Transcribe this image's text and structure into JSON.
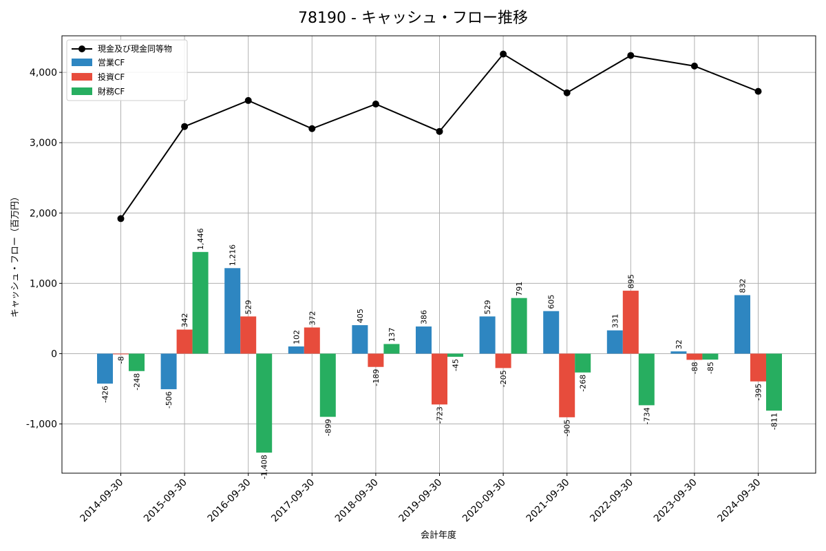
{
  "chart_data": {
    "type": "bar",
    "title": "78190 - キャッシュ・フロー推移",
    "xlabel": "会計年度",
    "ylabel": "キャッシュ・フロー（百万円）",
    "categories": [
      "2014-09-30",
      "2015-09-30",
      "2016-09-30",
      "2017-09-30",
      "2018-09-30",
      "2019-09-30",
      "2020-09-30",
      "2021-09-30",
      "2022-09-30",
      "2023-09-30",
      "2024-09-30"
    ],
    "ylim": [
      -1700,
      4520
    ],
    "yticks": [
      -1000,
      0,
      1000,
      2000,
      3000,
      4000
    ],
    "ytick_labels": [
      "-1,000",
      "0",
      "1,000",
      "2,000",
      "3,000",
      "4,000"
    ],
    "grid": true,
    "legend_position": "top-left",
    "series": [
      {
        "name": "営業CF",
        "type": "bar",
        "color": "#2e86c1",
        "values": [
          -426,
          -506,
          1216,
          102,
          405,
          386,
          529,
          605,
          331,
          32,
          832
        ],
        "labels": [
          "-426",
          "-506",
          "1,216",
          "102",
          "405",
          "386",
          "529",
          "605",
          "331",
          "32",
          "832"
        ]
      },
      {
        "name": "投資CF",
        "type": "bar",
        "color": "#e74c3c",
        "values": [
          -8,
          342,
          529,
          372,
          -189,
          -723,
          -205,
          -905,
          895,
          -88,
          -395
        ],
        "labels": [
          "-8",
          "342",
          "529",
          "372",
          "-189",
          "-723",
          "-205",
          "-905",
          "895",
          "-88",
          "-395"
        ]
      },
      {
        "name": "財務CF",
        "type": "bar",
        "color": "#27ae60",
        "values": [
          -248,
          1446,
          -1408,
          -899,
          137,
          -45,
          791,
          -268,
          -734,
          -85,
          -811
        ],
        "labels": [
          "-248",
          "1,446",
          "-1,408",
          "-899",
          "137",
          "-45",
          "791",
          "-268",
          "-734",
          "-85",
          "-811"
        ]
      }
    ],
    "line_series": {
      "name": "現金及び現金同等物",
      "type": "line",
      "color": "#000000",
      "values": [
        1920,
        3230,
        3600,
        3200,
        3550,
        3160,
        4260,
        3710,
        4240,
        4090,
        3730
      ]
    }
  }
}
